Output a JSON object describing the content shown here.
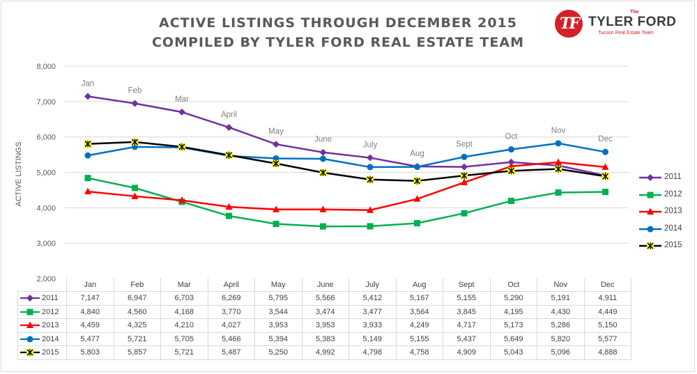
{
  "title_line_1": "ACTIVE LISTINGS THROUGH DECEMBER 2015",
  "title_line_2": "COMPILED BY TYLER FORD REAL ESTATE TEAM",
  "logo": {
    "monogram": "TF",
    "the": "The",
    "name": "TYLER FORD",
    "tagline": "Tucson Real Estate Team"
  },
  "colors": {
    "2011": "#7030a0",
    "2012": "#00b050",
    "2013": "#ff0000",
    "2014": "#0070c0",
    "2015": "#000000",
    "star_fill": "#ffff00"
  },
  "chart_data": {
    "type": "line",
    "title": "ACTIVE LISTINGS THROUGH DECEMBER 2015",
    "subtitle": "COMPILED BY TYLER FORD REAL ESTATE TEAM",
    "xlabel": "",
    "ylabel": "ACTIVE LISTINGS",
    "ylim": [
      2000,
      8000
    ],
    "yticks": [
      "2,000",
      "3,000",
      "4,000",
      "5,000",
      "6,000",
      "7,000",
      "8,000"
    ],
    "categories": [
      "Jan",
      "Feb",
      "Mar",
      "April",
      "May",
      "June",
      "July",
      "Aug",
      "Sept",
      "Oct",
      "Nov",
      "Dec"
    ],
    "table_categories": [
      "Jan",
      "Feb",
      "Mar",
      "April",
      "May",
      "June",
      "July",
      "Aug",
      "Sept",
      "Oct",
      "Nov",
      "Dec"
    ],
    "grid": "horizontal",
    "legend_position": "right",
    "series": [
      {
        "name": "2011",
        "marker": "diamond",
        "values": [
          7147,
          6947,
          6703,
          6269,
          5795,
          5566,
          5412,
          5167,
          5155,
          5290,
          5191,
          4911
        ]
      },
      {
        "name": "2012",
        "marker": "square",
        "values": [
          4840,
          4560,
          4168,
          3770,
          3544,
          3474,
          3477,
          3564,
          3845,
          4195,
          4430,
          4449
        ]
      },
      {
        "name": "2013",
        "marker": "triangle",
        "values": [
          4459,
          4325,
          4210,
          4027,
          3953,
          3953,
          3933,
          4249,
          4717,
          5173,
          5286,
          5150
        ]
      },
      {
        "name": "2014",
        "marker": "circle",
        "values": [
          5477,
          5721,
          5705,
          5466,
          5394,
          5383,
          5149,
          5155,
          5437,
          5649,
          5820,
          5577
        ]
      },
      {
        "name": "2015",
        "marker": "star",
        "values": [
          5803,
          5857,
          5721,
          5487,
          5250,
          4992,
          4798,
          4758,
          4909,
          5043,
          5096,
          4888
        ]
      }
    ],
    "month_annotations": {
      "series": "2011",
      "labels": [
        "Jan",
        "Feb",
        "Mar",
        "April",
        "May",
        "June",
        "July",
        "Aug",
        "Sept",
        "Oct",
        "Nov",
        "Dec"
      ]
    },
    "table_values": [
      [
        "7,147",
        "6,947",
        "6,703",
        "6,269",
        "5,795",
        "5,566",
        "5,412",
        "5,167",
        "5,155",
        "5,290",
        "5,191",
        "4,911"
      ],
      [
        "4,840",
        "4,560",
        "4,168",
        "3,770",
        "3,544",
        "3,474",
        "3,477",
        "3,564",
        "3,845",
        "4,195",
        "4,430",
        "4,449"
      ],
      [
        "4,459",
        "4,325",
        "4,210",
        "4,027",
        "3,953",
        "3,953",
        "3,933",
        "4,249",
        "4,717",
        "5,173",
        "5,286",
        "5,150"
      ],
      [
        "5,477",
        "5,721",
        "5,705",
        "5,466",
        "5,394",
        "5,383",
        "5,149",
        "5,155",
        "5,437",
        "5,649",
        "5,820",
        "5,577"
      ],
      [
        "5,803",
        "5,857",
        "5,721",
        "5,487",
        "5,250",
        "4,992",
        "4,798",
        "4,758",
        "4,909",
        "5,043",
        "5,096",
        "4,888"
      ]
    ]
  }
}
